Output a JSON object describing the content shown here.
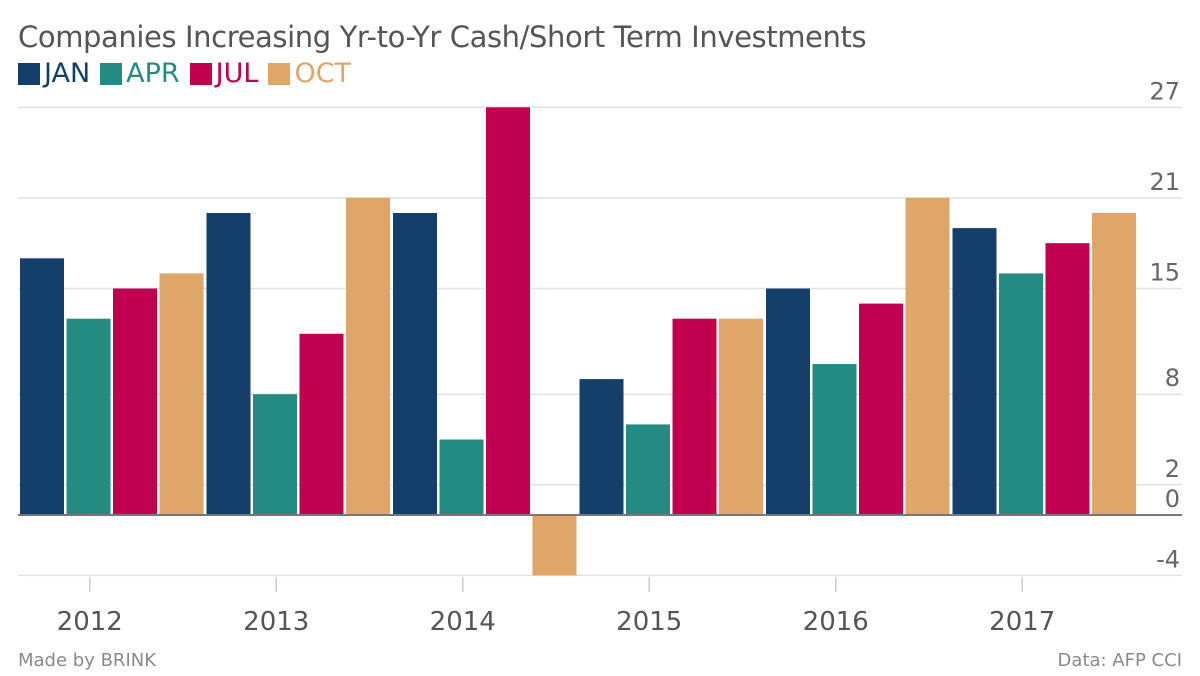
{
  "chart_data": {
    "type": "bar",
    "title": "Companies Increasing Yr-to-Yr Cash/Short Term Investments",
    "categories": [
      "2012",
      "2013",
      "2014",
      "2015",
      "2016",
      "2017"
    ],
    "series": [
      {
        "name": "JAN",
        "color": "#143f6b",
        "values": [
          17,
          20,
          20,
          9,
          15,
          19
        ]
      },
      {
        "name": "APR",
        "color": "#248b82",
        "values": [
          13,
          8,
          5,
          6,
          10,
          16
        ]
      },
      {
        "name": "JUL",
        "color": "#c1004f",
        "values": [
          15,
          12,
          27,
          13,
          14,
          18
        ]
      },
      {
        "name": "OCT",
        "color": "#e0a669",
        "values": [
          16,
          21,
          -4,
          13,
          21,
          20
        ]
      }
    ],
    "yticks": [
      27,
      21,
      15,
      8,
      2,
      0,
      -4
    ],
    "ylim": [
      -4,
      27
    ],
    "grid": true,
    "legend": "top-left"
  },
  "footer": {
    "left": "Made by BRINK",
    "right": "Data: AFP CCI"
  }
}
